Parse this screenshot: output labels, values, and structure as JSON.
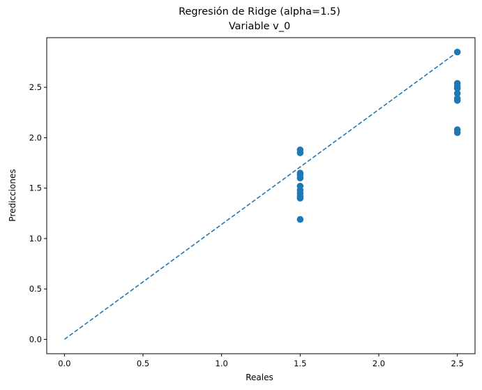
{
  "chart_data": {
    "type": "scatter",
    "title": "Regresión de Ridge (alpha=1.5)",
    "subtitle": "Variable v_0",
    "xlabel": "Reales",
    "ylabel": "Predicciones",
    "xlim": [
      -0.1125,
      2.6125
    ],
    "ylim": [
      -0.1425,
      2.9925
    ],
    "xticks": [
      0.0,
      0.5,
      1.0,
      1.5,
      2.0,
      2.5
    ],
    "xtick_labels": [
      "0.0",
      "0.5",
      "1.0",
      "1.5",
      "2.0",
      "2.5"
    ],
    "yticks": [
      0.0,
      0.5,
      1.0,
      1.5,
      2.0,
      2.5
    ],
    "ytick_labels": [
      "0.0",
      "0.5",
      "1.0",
      "1.5",
      "2.0",
      "2.5"
    ],
    "grid": false,
    "series": [
      {
        "kind": "points",
        "color": "#1f77b4",
        "points": [
          {
            "x": 1.5,
            "y": 1.19
          },
          {
            "x": 1.5,
            "y": 1.4
          },
          {
            "x": 1.5,
            "y": 1.42
          },
          {
            "x": 1.5,
            "y": 1.45
          },
          {
            "x": 1.5,
            "y": 1.48
          },
          {
            "x": 1.5,
            "y": 1.52
          },
          {
            "x": 1.5,
            "y": 1.6
          },
          {
            "x": 1.5,
            "y": 1.63
          },
          {
            "x": 1.5,
            "y": 1.65
          },
          {
            "x": 1.5,
            "y": 1.85
          },
          {
            "x": 1.5,
            "y": 1.88
          },
          {
            "x": 2.5,
            "y": 2.05
          },
          {
            "x": 2.5,
            "y": 2.08
          },
          {
            "x": 2.5,
            "y": 2.37
          },
          {
            "x": 2.5,
            "y": 2.39
          },
          {
            "x": 2.5,
            "y": 2.44
          },
          {
            "x": 2.5,
            "y": 2.49
          },
          {
            "x": 2.5,
            "y": 2.51
          },
          {
            "x": 2.5,
            "y": 2.54
          },
          {
            "x": 2.5,
            "y": 2.85
          }
        ]
      },
      {
        "kind": "reference-line",
        "style": "dashed",
        "color": "#1f77b4",
        "x": [
          0.0,
          2.5
        ],
        "y": [
          0.0,
          2.85
        ]
      }
    ]
  }
}
